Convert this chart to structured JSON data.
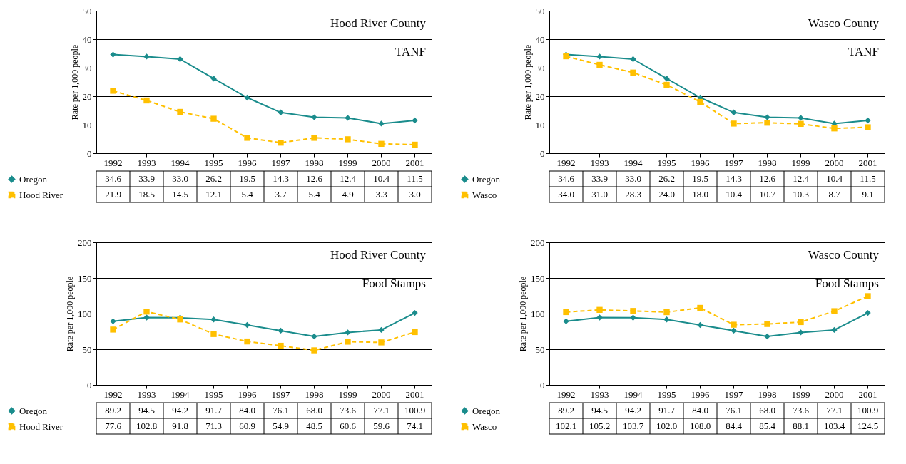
{
  "chart_data": [
    {
      "type": "line",
      "categories": [
        "1992",
        "1993",
        "1994",
        "1995",
        "1996",
        "1997",
        "1998",
        "1999",
        "2000",
        "2001"
      ],
      "ylabel": "Rate per 1,000 people",
      "ylim": [
        0,
        50
      ],
      "yticks": [
        0,
        10,
        20,
        30,
        40,
        50
      ],
      "grid": "y",
      "legend": "bottom left",
      "annotations": [
        "Hood River County",
        "TANF"
      ],
      "series": [
        {
          "name": "Oregon",
          "color": "#1a8c8c",
          "marker": "diamond",
          "line_style": "solid",
          "values": [
            34.6,
            33.9,
            33.0,
            26.2,
            19.5,
            14.3,
            12.6,
            12.4,
            10.4,
            11.5
          ],
          "value_labels": [
            "34.6",
            "33.9",
            "33.0",
            "26.2",
            "19.5",
            "14.3",
            "12.6",
            "12.4",
            "10.4",
            "11.5"
          ]
        },
        {
          "name": "Hood River",
          "color": "#ffc000",
          "marker": "square",
          "line_style": "dashed",
          "values": [
            21.9,
            18.5,
            14.5,
            12.1,
            5.4,
            3.7,
            5.4,
            4.9,
            3.3,
            3.0
          ],
          "value_labels": [
            "21.9",
            "18.5",
            "14.5",
            "12.1",
            "5.4",
            "3.7",
            "5.4",
            "4.9",
            "3.3",
            "3.0"
          ]
        }
      ]
    },
    {
      "type": "line",
      "categories": [
        "1992",
        "1993",
        "1994",
        "1995",
        "1996",
        "1997",
        "1998",
        "1999",
        "2000",
        "2001"
      ],
      "ylabel": "Rate per 1,000 people",
      "ylim": [
        0,
        50
      ],
      "yticks": [
        0,
        10,
        20,
        30,
        40,
        50
      ],
      "grid": "y",
      "legend": "bottom left",
      "annotations": [
        "Wasco County",
        "TANF"
      ],
      "series": [
        {
          "name": "Oregon",
          "color": "#1a8c8c",
          "marker": "diamond",
          "line_style": "solid",
          "values": [
            34.6,
            33.9,
            33.0,
            26.2,
            19.5,
            14.3,
            12.6,
            12.4,
            10.4,
            11.5
          ],
          "value_labels": [
            "34.6",
            "33.9",
            "33.0",
            "26.2",
            "19.5",
            "14.3",
            "12.6",
            "12.4",
            "10.4",
            "11.5"
          ]
        },
        {
          "name": "Wasco",
          "color": "#ffc000",
          "marker": "square",
          "line_style": "dashed",
          "values": [
            34.0,
            31.0,
            28.3,
            24.0,
            18.0,
            10.4,
            10.7,
            10.3,
            8.7,
            9.1
          ],
          "value_labels": [
            "34.0",
            "31.0",
            "28.3",
            "24.0",
            "18.0",
            "10.4",
            "10.7",
            "10.3",
            "8.7",
            "9.1"
          ]
        }
      ]
    },
    {
      "type": "line",
      "categories": [
        "1992",
        "1993",
        "1994",
        "1995",
        "1996",
        "1997",
        "1998",
        "1999",
        "2000",
        "2001"
      ],
      "ylabel": "Rate per 1,000 people",
      "ylim": [
        0,
        200
      ],
      "yticks": [
        0,
        50,
        100,
        150,
        200
      ],
      "grid": "y",
      "legend": "bottom left",
      "annotations": [
        "Hood River County",
        "Food Stamps"
      ],
      "series": [
        {
          "name": "Oregon",
          "color": "#1a8c8c",
          "marker": "diamond",
          "line_style": "solid",
          "values": [
            89.2,
            94.5,
            94.2,
            91.7,
            84.0,
            76.1,
            68.0,
            73.6,
            77.1,
            100.9
          ],
          "value_labels": [
            "89.2",
            "94.5",
            "94.2",
            "91.7",
            "84.0",
            "76.1",
            "68.0",
            "73.6",
            "77.1",
            "100.9"
          ]
        },
        {
          "name": "Hood River",
          "color": "#ffc000",
          "marker": "square",
          "line_style": "dashed",
          "values": [
            77.6,
            102.8,
            91.8,
            71.3,
            60.9,
            54.9,
            48.5,
            60.6,
            59.6,
            74.1
          ],
          "value_labels": [
            "77.6",
            "102.8",
            "91.8",
            "71.3",
            "60.9",
            "54.9",
            "48.5",
            "60.6",
            "59.6",
            "74.1"
          ]
        }
      ]
    },
    {
      "type": "line",
      "categories": [
        "1992",
        "1993",
        "1994",
        "1995",
        "1996",
        "1997",
        "1998",
        "1999",
        "2000",
        "2001"
      ],
      "ylabel": "Rate per 1,000 people",
      "ylim": [
        0,
        200
      ],
      "yticks": [
        0,
        50,
        100,
        150,
        200
      ],
      "grid": "y",
      "legend": "bottom left",
      "annotations": [
        "Wasco County",
        "Food Stamps"
      ],
      "series": [
        {
          "name": "Oregon",
          "color": "#1a8c8c",
          "marker": "diamond",
          "line_style": "solid",
          "values": [
            89.2,
            94.5,
            94.2,
            91.7,
            84.0,
            76.1,
            68.0,
            73.6,
            77.1,
            100.9
          ],
          "value_labels": [
            "89.2",
            "94.5",
            "94.2",
            "91.7",
            "84.0",
            "76.1",
            "68.0",
            "73.6",
            "77.1",
            "100.9"
          ]
        },
        {
          "name": "Wasco",
          "color": "#ffc000",
          "marker": "square",
          "line_style": "dashed",
          "values": [
            102.1,
            105.2,
            103.7,
            102.0,
            108.0,
            84.4,
            85.4,
            88.1,
            103.4,
            124.5
          ],
          "value_labels": [
            "102.1",
            "105.2",
            "103.7",
            "102.0",
            "108.0",
            "84.4",
            "85.4",
            "88.1",
            "103.4",
            "124.5"
          ]
        }
      ]
    }
  ]
}
